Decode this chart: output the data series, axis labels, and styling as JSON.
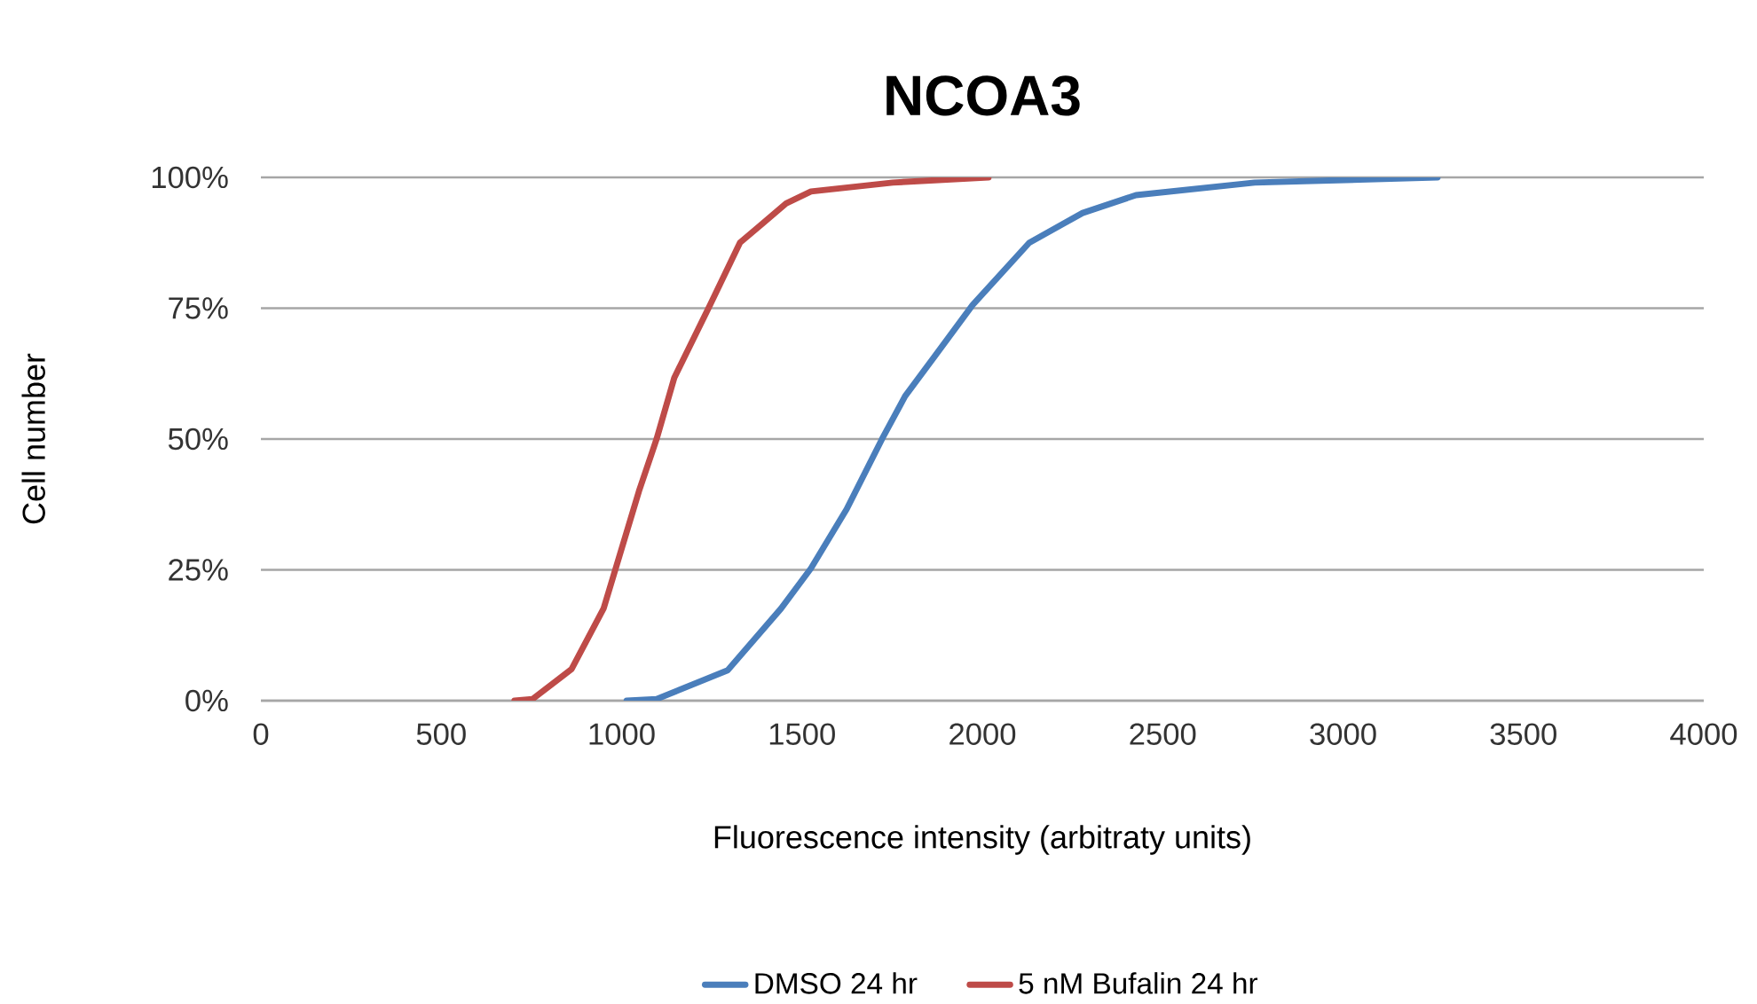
{
  "chart_data": {
    "type": "line",
    "title": "NCOA3",
    "xlabel": "Fluorescence intensity (arbitraty units)",
    "ylabel": "Cell number",
    "series": [
      {
        "name": "DMSO 24 hr",
        "color": "#4a7ebb",
        "x": [
          1014,
          1097,
          1294,
          1442,
          1525,
          1624,
          1722,
          1786,
          1870,
          1973,
          2130,
          2278,
          2426,
          2755,
          3262
        ],
        "values": [
          0,
          0.3,
          5.8,
          17.6,
          25.3,
          36.6,
          50,
          58.2,
          66,
          75.6,
          87.5,
          93.2,
          96.6,
          99,
          100
        ]
      },
      {
        "name": "5 nM Bufalin 24 hr",
        "color": "#be4b48",
        "x": [
          703,
          753,
          861,
          950,
          999,
          1048,
          1097,
          1146,
          1245,
          1328,
          1456,
          1525,
          1752,
          2017
        ],
        "values": [
          0,
          0.3,
          6,
          17.6,
          28.8,
          40,
          50,
          61.7,
          75.6,
          87.5,
          95,
          97.3,
          99,
          100
        ]
      }
    ],
    "xlim": [
      0,
      4000
    ],
    "xticks": [
      0,
      500,
      1000,
      1500,
      2000,
      2500,
      3000,
      3500,
      4000
    ],
    "ylim": [
      0,
      100
    ],
    "yticks": [
      {
        "value": 0,
        "label": "0%"
      },
      {
        "value": 25,
        "label": "25%"
      },
      {
        "value": 50,
        "label": "50%"
      },
      {
        "value": 75,
        "label": "75%"
      },
      {
        "value": 100,
        "label": "100%"
      }
    ],
    "grid": "y",
    "legend": "bottom",
    "line_style": "solid"
  }
}
